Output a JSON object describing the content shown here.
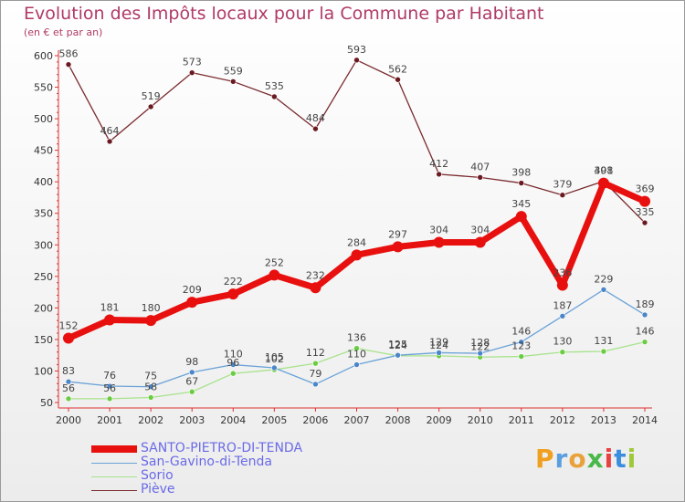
{
  "header": {
    "title": "Evolution des Impôts locaux pour la Commune par Habitant",
    "subtitle": "(en € et par an)"
  },
  "logo": {
    "text": "Proxiti",
    "colors": [
      "#f0a020",
      "#5a9ee0",
      "#e9a23b",
      "#48b848",
      "#e94040",
      "#3a8ee0",
      "#a0c83a"
    ]
  },
  "chart_data": {
    "type": "line",
    "title": "Evolution des Impôts locaux pour la Commune par Habitant",
    "subtitle": "(en € et par an)",
    "x": [
      "2000",
      "2001",
      "2002",
      "2003",
      "2004",
      "2005",
      "2006",
      "2007",
      "2008",
      "2009",
      "2010",
      "2011",
      "2012",
      "2013",
      "2014"
    ],
    "ylim": [
      50,
      600
    ],
    "yticks": [
      50,
      100,
      150,
      200,
      250,
      300,
      350,
      400,
      450,
      500,
      550,
      600
    ],
    "grid": false,
    "legend": "bottom-left",
    "series": [
      {
        "name": "SANTO-PIETRO-DI-TENDA",
        "color": "#e8100f",
        "values": [
          152,
          181,
          180,
          209,
          222,
          252,
          232,
          284,
          297,
          304,
          304,
          345,
          236,
          398,
          369
        ]
      },
      {
        "name": "San-Gavino-di-Tenda",
        "color": "#5b9ad4",
        "values": [
          83,
          76,
          75,
          98,
          110,
          105,
          79,
          110,
          125,
          129,
          128,
          146,
          187,
          229,
          189
        ]
      },
      {
        "name": "Sorio",
        "color": "#9ee080",
        "values": [
          56,
          56,
          58,
          67,
          96,
          102,
          112,
          136,
          124,
          124,
          122,
          123,
          130,
          131,
          146
        ]
      },
      {
        "name": "Piève",
        "color": "#7a2a2e",
        "values": [
          586,
          464,
          519,
          573,
          559,
          535,
          484,
          593,
          562,
          412,
          407,
          398,
          379,
          401,
          335
        ]
      }
    ]
  }
}
